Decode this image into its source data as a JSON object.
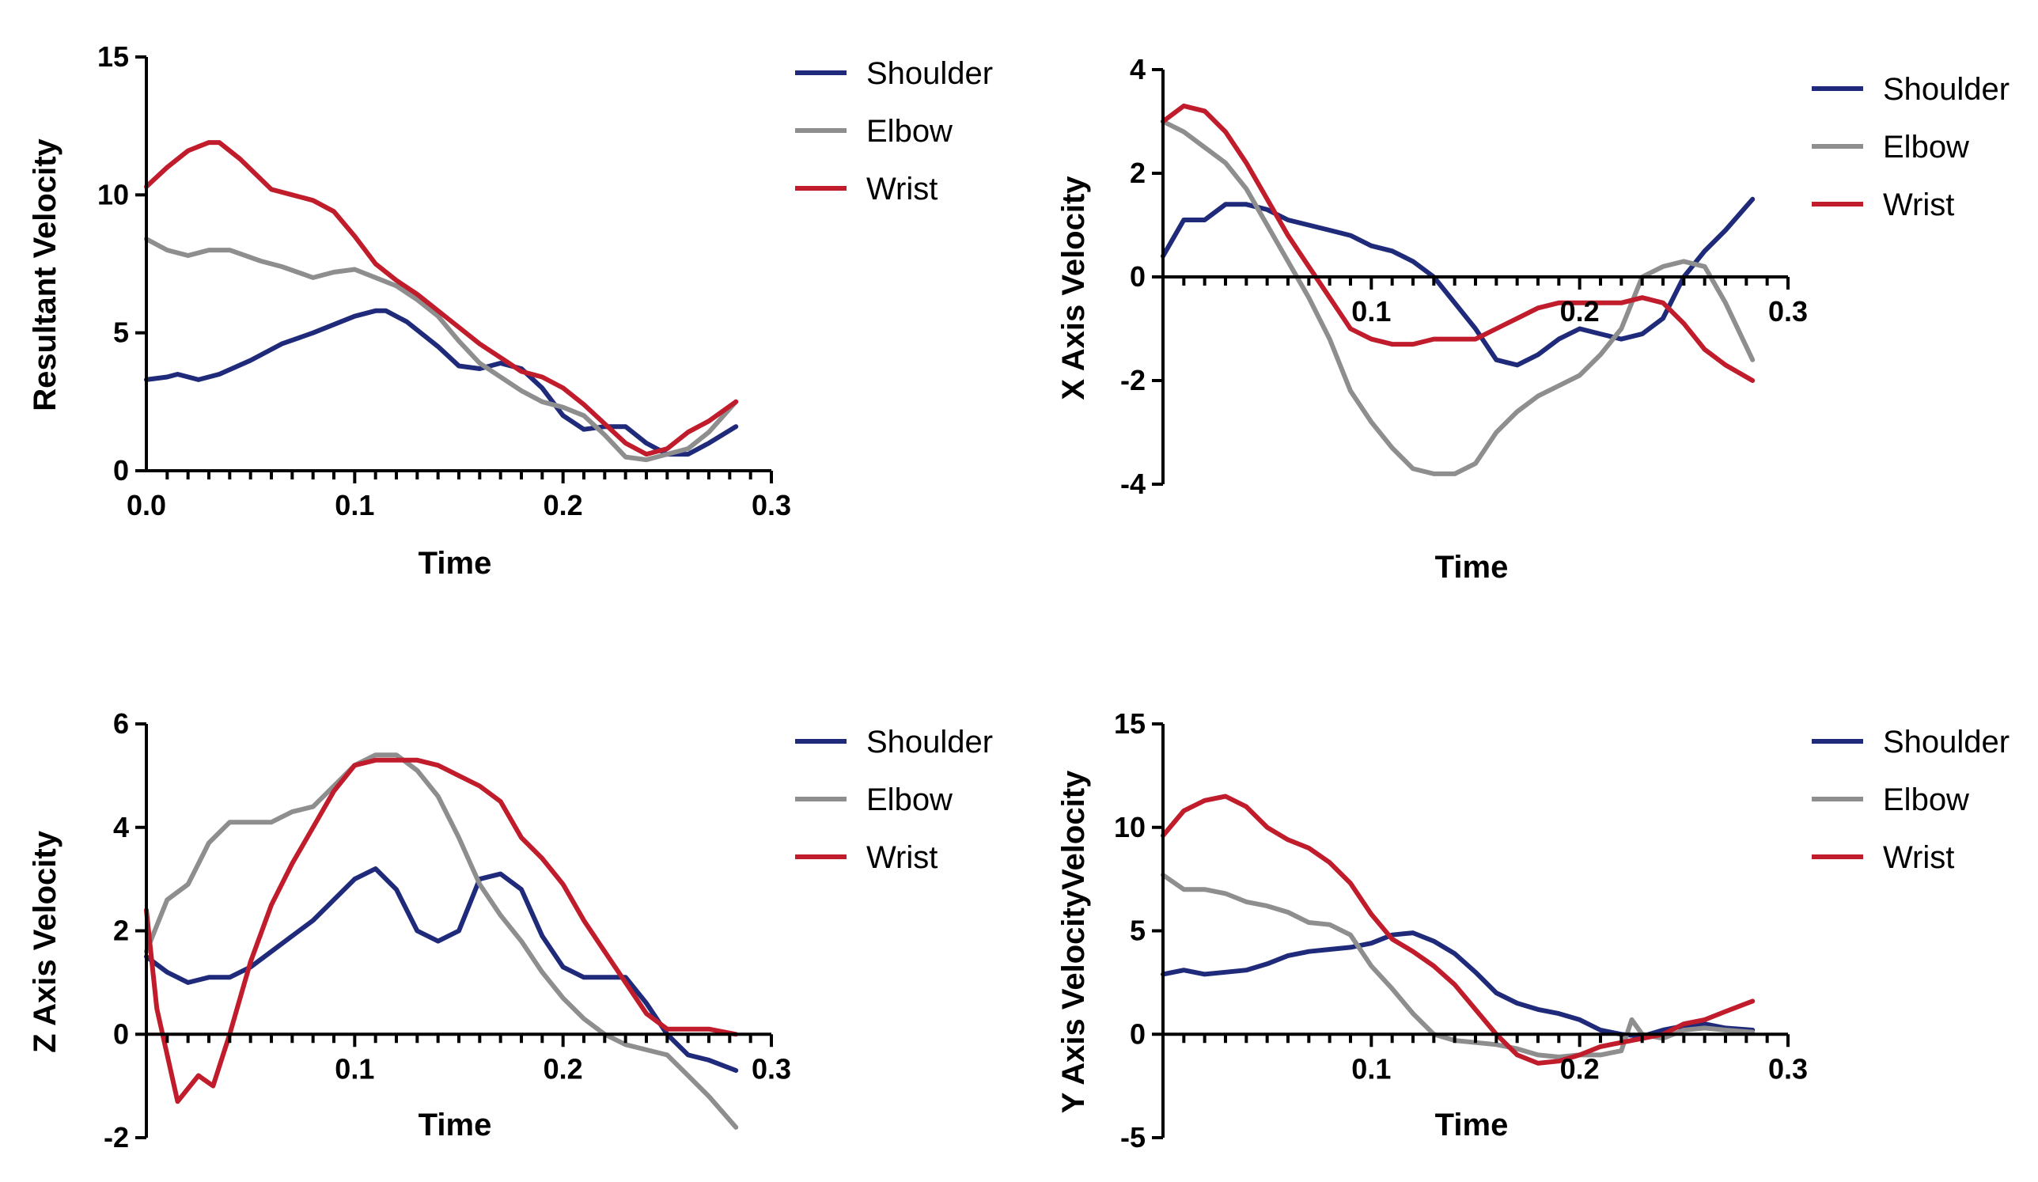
{
  "colors": {
    "Shoulder": "#1f2a7a",
    "Elbow": "#8e8e8e",
    "Wrist": "#c01c2c"
  },
  "chart_data": [
    {
      "type": "line",
      "title": "",
      "xlabel": "Time",
      "ylabel": "Resultant Velocity",
      "xlim": [
        0,
        0.3
      ],
      "ylim": [
        0,
        15
      ],
      "xticks": [
        0.0,
        0.1,
        0.2,
        0.3
      ],
      "xtick_labels": [
        "0.0",
        "0.1",
        "0.2",
        "0.3"
      ],
      "yticks": [
        0,
        5,
        10,
        15
      ],
      "ytick_labels": [
        "0",
        "5",
        "10",
        "15"
      ],
      "minor_xtick_step": 0.01,
      "legend_position": "right",
      "legend": [
        "Shoulder",
        "Elbow",
        "Wrist"
      ],
      "series": [
        {
          "name": "Shoulder",
          "x": [
            0,
            0.01,
            0.015,
            0.025,
            0.035,
            0.05,
            0.065,
            0.08,
            0.09,
            0.1,
            0.11,
            0.115,
            0.125,
            0.14,
            0.15,
            0.16,
            0.17,
            0.18,
            0.19,
            0.2,
            0.21,
            0.22,
            0.23,
            0.24,
            0.25,
            0.26,
            0.27,
            0.283
          ],
          "y": [
            3.3,
            3.4,
            3.5,
            3.3,
            3.5,
            4.0,
            4.6,
            5.0,
            5.3,
            5.6,
            5.8,
            5.8,
            5.4,
            4.5,
            3.8,
            3.7,
            3.9,
            3.7,
            3.0,
            2.0,
            1.5,
            1.6,
            1.6,
            1.0,
            0.6,
            0.6,
            1.0,
            1.6
          ]
        },
        {
          "name": "Elbow",
          "x": [
            0,
            0.01,
            0.02,
            0.03,
            0.04,
            0.055,
            0.065,
            0.08,
            0.09,
            0.1,
            0.11,
            0.12,
            0.13,
            0.14,
            0.15,
            0.16,
            0.17,
            0.18,
            0.19,
            0.2,
            0.21,
            0.22,
            0.23,
            0.24,
            0.25,
            0.26,
            0.27,
            0.283
          ],
          "y": [
            8.4,
            8.0,
            7.8,
            8.0,
            8.0,
            7.6,
            7.4,
            7.0,
            7.2,
            7.3,
            7.0,
            6.7,
            6.2,
            5.6,
            4.7,
            3.9,
            3.4,
            2.9,
            2.5,
            2.3,
            2.0,
            1.3,
            0.5,
            0.4,
            0.6,
            0.8,
            1.4,
            2.5
          ]
        },
        {
          "name": "Wrist",
          "x": [
            0,
            0.01,
            0.02,
            0.03,
            0.035,
            0.045,
            0.06,
            0.07,
            0.08,
            0.09,
            0.1,
            0.11,
            0.12,
            0.13,
            0.14,
            0.15,
            0.16,
            0.17,
            0.18,
            0.19,
            0.2,
            0.21,
            0.22,
            0.23,
            0.24,
            0.25,
            0.26,
            0.27,
            0.283
          ],
          "y": [
            10.3,
            11.0,
            11.6,
            11.9,
            11.9,
            11.3,
            10.2,
            10.0,
            9.8,
            9.4,
            8.5,
            7.5,
            6.9,
            6.4,
            5.8,
            5.2,
            4.6,
            4.1,
            3.6,
            3.4,
            3.0,
            2.4,
            1.7,
            1.0,
            0.6,
            0.8,
            1.4,
            1.8,
            2.5
          ]
        }
      ]
    },
    {
      "type": "line",
      "title": "",
      "xlabel": "Time",
      "ylabel": "X Axis Velocity",
      "xlim": [
        0,
        0.3
      ],
      "ylim": [
        -4,
        4
      ],
      "xticks": [
        0.1,
        0.2,
        0.3
      ],
      "xtick_labels": [
        "0.1",
        "0.2",
        "0.3"
      ],
      "yticks": [
        -4,
        -2,
        0,
        2,
        4
      ],
      "ytick_labels": [
        "-4",
        "-2",
        "0",
        "2",
        "4"
      ],
      "minor_xtick_step": 0.01,
      "legend_position": "right",
      "legend": [
        "Shoulder",
        "Elbow",
        "Wrist"
      ],
      "series": [
        {
          "name": "Shoulder",
          "x": [
            0,
            0.01,
            0.02,
            0.03,
            0.04,
            0.05,
            0.06,
            0.07,
            0.08,
            0.09,
            0.1,
            0.11,
            0.12,
            0.13,
            0.14,
            0.15,
            0.16,
            0.17,
            0.18,
            0.19,
            0.2,
            0.21,
            0.22,
            0.23,
            0.24,
            0.25,
            0.26,
            0.27,
            0.283
          ],
          "y": [
            0.4,
            1.1,
            1.1,
            1.4,
            1.4,
            1.3,
            1.1,
            1.0,
            0.9,
            0.8,
            0.6,
            0.5,
            0.3,
            0.0,
            -0.5,
            -1.0,
            -1.6,
            -1.7,
            -1.5,
            -1.2,
            -1.0,
            -1.1,
            -1.2,
            -1.1,
            -0.8,
            0.0,
            0.5,
            0.9,
            1.5
          ]
        },
        {
          "name": "Elbow",
          "x": [
            0,
            0.01,
            0.02,
            0.03,
            0.04,
            0.05,
            0.06,
            0.07,
            0.08,
            0.09,
            0.1,
            0.11,
            0.12,
            0.13,
            0.14,
            0.15,
            0.16,
            0.17,
            0.18,
            0.19,
            0.2,
            0.21,
            0.22,
            0.23,
            0.24,
            0.25,
            0.26,
            0.27,
            0.283
          ],
          "y": [
            3.0,
            2.8,
            2.5,
            2.2,
            1.7,
            1.0,
            0.3,
            -0.4,
            -1.2,
            -2.2,
            -2.8,
            -3.3,
            -3.7,
            -3.8,
            -3.8,
            -3.6,
            -3.0,
            -2.6,
            -2.3,
            -2.1,
            -1.9,
            -1.5,
            -1.0,
            0.0,
            0.2,
            0.3,
            0.2,
            -0.5,
            -1.6
          ]
        },
        {
          "name": "Wrist",
          "x": [
            0,
            0.01,
            0.02,
            0.03,
            0.04,
            0.05,
            0.06,
            0.07,
            0.08,
            0.09,
            0.1,
            0.11,
            0.12,
            0.13,
            0.14,
            0.15,
            0.16,
            0.17,
            0.18,
            0.19,
            0.2,
            0.21,
            0.22,
            0.23,
            0.24,
            0.25,
            0.26,
            0.27,
            0.283
          ],
          "y": [
            3.0,
            3.3,
            3.2,
            2.8,
            2.2,
            1.5,
            0.8,
            0.2,
            -0.4,
            -1.0,
            -1.2,
            -1.3,
            -1.3,
            -1.2,
            -1.2,
            -1.2,
            -1.0,
            -0.8,
            -0.6,
            -0.5,
            -0.5,
            -0.5,
            -0.5,
            -0.4,
            -0.5,
            -0.9,
            -1.4,
            -1.7,
            -2.0
          ]
        }
      ]
    },
    {
      "type": "line",
      "title": "",
      "xlabel": "Time",
      "ylabel": "Z Axis Velocity",
      "xlim": [
        0,
        0.3
      ],
      "ylim": [
        -2,
        6
      ],
      "xticks": [
        0.1,
        0.2,
        0.3
      ],
      "xtick_labels": [
        "0.1",
        "0.2",
        "0.3"
      ],
      "yticks": [
        -2,
        0,
        2,
        4,
        6
      ],
      "ytick_labels": [
        "-2",
        "0",
        "2",
        "4",
        "6"
      ],
      "minor_xtick_step": 0.01,
      "legend_position": "right",
      "legend": [
        "Shoulder",
        "Elbow",
        "Wrist"
      ],
      "series": [
        {
          "name": "Shoulder",
          "x": [
            0,
            0.01,
            0.02,
            0.03,
            0.04,
            0.05,
            0.06,
            0.07,
            0.08,
            0.09,
            0.1,
            0.11,
            0.12,
            0.13,
            0.14,
            0.15,
            0.16,
            0.17,
            0.18,
            0.19,
            0.2,
            0.21,
            0.22,
            0.23,
            0.24,
            0.25,
            0.26,
            0.27,
            0.283
          ],
          "y": [
            1.5,
            1.2,
            1.0,
            1.1,
            1.1,
            1.3,
            1.6,
            1.9,
            2.2,
            2.6,
            3.0,
            3.2,
            2.8,
            2.0,
            1.8,
            2.0,
            3.0,
            3.1,
            2.8,
            1.9,
            1.3,
            1.1,
            1.1,
            1.1,
            0.6,
            0.0,
            -0.4,
            -0.5,
            -0.7
          ]
        },
        {
          "name": "Elbow",
          "x": [
            0,
            0.01,
            0.02,
            0.03,
            0.04,
            0.05,
            0.06,
            0.07,
            0.08,
            0.09,
            0.1,
            0.11,
            0.12,
            0.13,
            0.14,
            0.15,
            0.16,
            0.17,
            0.18,
            0.19,
            0.2,
            0.21,
            0.22,
            0.23,
            0.24,
            0.25,
            0.26,
            0.27,
            0.283
          ],
          "y": [
            1.6,
            2.6,
            2.9,
            3.7,
            4.1,
            4.1,
            4.1,
            4.3,
            4.4,
            4.8,
            5.2,
            5.4,
            5.4,
            5.1,
            4.6,
            3.8,
            2.9,
            2.3,
            1.8,
            1.2,
            0.7,
            0.3,
            0.0,
            -0.2,
            -0.3,
            -0.4,
            -0.8,
            -1.2,
            -1.8
          ]
        },
        {
          "name": "Wrist",
          "x": [
            0,
            0.005,
            0.015,
            0.025,
            0.032,
            0.04,
            0.05,
            0.06,
            0.07,
            0.08,
            0.09,
            0.1,
            0.11,
            0.12,
            0.13,
            0.14,
            0.15,
            0.16,
            0.17,
            0.18,
            0.19,
            0.2,
            0.21,
            0.22,
            0.23,
            0.24,
            0.25,
            0.26,
            0.27,
            0.283
          ],
          "y": [
            2.4,
            0.5,
            -1.3,
            -0.8,
            -1.0,
            0.0,
            1.4,
            2.5,
            3.3,
            4.0,
            4.7,
            5.2,
            5.3,
            5.3,
            5.3,
            5.2,
            5.0,
            4.8,
            4.5,
            3.8,
            3.4,
            2.9,
            2.2,
            1.6,
            1.0,
            0.4,
            0.1,
            0.1,
            0.1,
            0.0
          ]
        }
      ]
    },
    {
      "type": "line",
      "title": "",
      "xlabel": "Time",
      "ylabel": "Y Axis VelocityVelocity",
      "xlim": [
        0,
        0.3
      ],
      "ylim": [
        -5,
        15
      ],
      "xticks": [
        0.1,
        0.2,
        0.3
      ],
      "xtick_labels": [
        "0.1",
        "0.2",
        "0.3"
      ],
      "yticks": [
        -5,
        0,
        5,
        10,
        15
      ],
      "ytick_labels": [
        "-5",
        "0",
        "5",
        "10",
        "15"
      ],
      "minor_xtick_step": 0.01,
      "legend_position": "right",
      "legend": [
        "Shoulder",
        "Elbow",
        "Wrist"
      ],
      "series": [
        {
          "name": "Shoulder",
          "x": [
            0,
            0.01,
            0.02,
            0.03,
            0.04,
            0.05,
            0.06,
            0.07,
            0.08,
            0.09,
            0.1,
            0.11,
            0.12,
            0.13,
            0.14,
            0.15,
            0.16,
            0.17,
            0.18,
            0.19,
            0.2,
            0.21,
            0.22,
            0.23,
            0.24,
            0.25,
            0.26,
            0.27,
            0.283
          ],
          "y": [
            2.9,
            3.1,
            2.9,
            3.0,
            3.1,
            3.4,
            3.8,
            4.0,
            4.1,
            4.2,
            4.4,
            4.8,
            4.9,
            4.5,
            3.9,
            3.0,
            2.0,
            1.5,
            1.2,
            1.0,
            0.7,
            0.2,
            0.0,
            -0.1,
            0.2,
            0.4,
            0.5,
            0.3,
            0.2
          ]
        },
        {
          "name": "Elbow",
          "x": [
            0,
            0.01,
            0.02,
            0.03,
            0.04,
            0.05,
            0.06,
            0.07,
            0.08,
            0.09,
            0.1,
            0.11,
            0.12,
            0.13,
            0.14,
            0.15,
            0.16,
            0.17,
            0.18,
            0.19,
            0.2,
            0.21,
            0.22,
            0.225,
            0.23,
            0.24,
            0.25,
            0.26,
            0.27,
            0.283
          ],
          "y": [
            7.7,
            7.0,
            7.0,
            6.8,
            6.4,
            6.2,
            5.9,
            5.4,
            5.3,
            4.8,
            3.3,
            2.2,
            1.0,
            0.0,
            -0.3,
            -0.4,
            -0.5,
            -0.7,
            -1.0,
            -1.1,
            -1.0,
            -1.0,
            -0.8,
            0.7,
            0.0,
            -0.2,
            0.2,
            0.3,
            0.2,
            0.1
          ]
        },
        {
          "name": "Wrist",
          "x": [
            0,
            0.01,
            0.02,
            0.03,
            0.04,
            0.05,
            0.06,
            0.07,
            0.08,
            0.09,
            0.1,
            0.11,
            0.12,
            0.13,
            0.14,
            0.15,
            0.16,
            0.17,
            0.18,
            0.19,
            0.2,
            0.21,
            0.22,
            0.23,
            0.24,
            0.25,
            0.26,
            0.27,
            0.283
          ],
          "y": [
            9.6,
            10.8,
            11.3,
            11.5,
            11.0,
            10.0,
            9.4,
            9.0,
            8.3,
            7.3,
            5.8,
            4.6,
            4.0,
            3.3,
            2.4,
            1.2,
            0.0,
            -1.0,
            -1.4,
            -1.3,
            -1.0,
            -0.6,
            -0.4,
            -0.2,
            0.0,
            0.5,
            0.7,
            1.1,
            1.6
          ]
        }
      ]
    }
  ]
}
